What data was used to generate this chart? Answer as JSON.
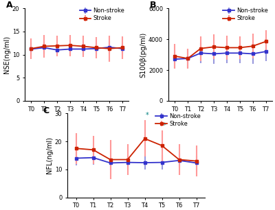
{
  "timepoints": [
    "T0",
    "T1",
    "T2",
    "T3",
    "T4",
    "T5",
    "T6",
    "T7"
  ],
  "panel_A": {
    "label": "A",
    "ylabel": "NSE(ng/ml)",
    "ylim": [
      0,
      20
    ],
    "yticks": [
      0,
      5,
      10,
      15,
      20
    ],
    "non_stroke_mean": [
      11.2,
      11.5,
      11.0,
      11.2,
      11.2,
      11.3,
      11.6,
      11.3
    ],
    "non_stroke_err": [
      1.3,
      1.3,
      1.0,
      1.3,
      1.2,
      1.2,
      1.3,
      1.2
    ],
    "stroke_mean": [
      11.3,
      11.8,
      11.9,
      12.0,
      11.8,
      11.5,
      11.3,
      11.5
    ],
    "stroke_err": [
      2.2,
      2.5,
      2.2,
      2.3,
      2.3,
      2.3,
      2.8,
      2.5
    ]
  },
  "panel_B": {
    "label": "B",
    "ylabel": "S100β(pg/ml)",
    "ylim": [
      0,
      6000
    ],
    "yticks": [
      0,
      2000,
      4000,
      6000
    ],
    "non_stroke_mean": [
      2700,
      2750,
      3100,
      3050,
      3100,
      3100,
      3050,
      3200
    ],
    "non_stroke_err": [
      600,
      600,
      650,
      650,
      650,
      650,
      650,
      600
    ],
    "stroke_mean": [
      2900,
      2750,
      3400,
      3500,
      3450,
      3450,
      3550,
      3850
    ],
    "stroke_err": [
      800,
      650,
      800,
      800,
      800,
      750,
      800,
      750
    ]
  },
  "panel_C": {
    "label": "C",
    "ylabel": "NFL(ng/ml)",
    "ylim": [
      0,
      30
    ],
    "yticks": [
      0,
      10,
      20,
      30
    ],
    "non_stroke_mean": [
      14.0,
      14.2,
      12.3,
      12.5,
      12.4,
      12.5,
      13.2,
      12.3
    ],
    "non_stroke_err": [
      2.5,
      2.5,
      2.5,
      2.5,
      2.5,
      2.5,
      2.5,
      2.5
    ],
    "stroke_mean": [
      17.5,
      17.0,
      13.5,
      13.5,
      21.0,
      18.5,
      13.5,
      13.0
    ],
    "stroke_err": [
      5.5,
      5.0,
      7.0,
      5.5,
      6.5,
      5.5,
      5.5,
      5.5
    ],
    "significance": [
      4,
      5
    ],
    "sig_color": "#008080"
  },
  "colors": {
    "non_stroke": "#3333CC",
    "stroke": "#CC2200",
    "non_stroke_err": "#9999DD",
    "stroke_err": "#FF9999"
  },
  "legend": {
    "non_stroke": "Non-stroke",
    "stroke": "Stroke"
  }
}
